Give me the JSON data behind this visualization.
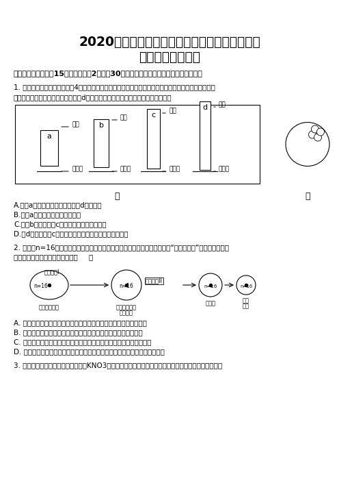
{
  "title_line1": "2020年北京市西城区实验学校高三生物下学期期",
  "title_line2": "末试卷及答案解析",
  "section1": "一、选择题：本题內15小题，每小還2分，內30分。每小题只有一个选项符合题目要求。",
  "q1_text1": "1. 用显微镜的一个目镜分别与4个不同物镜组合来观察某细胞装片。当成像清晰时，每一物镜与载玻片的",
  "q1_text2": "距离如图甲所示。图乙是选用图甲中d物镜时观察到的视野，下列说法错误的是（）",
  "q1_A": "A.选用a物镜时视野的亮度比选用d物镜时暗",
  "q1_B": "B.选用a物镜时观察到的细胞最大",
  "q1_C": "C.选用b物镜比选用c物镜观察到的细胞数目少",
  "q1_D": "D.由d物镜转换为c物镜观察时，应先将装片向左下方移动",
  "q2_text1": "2. 雄蜂（n=16）在产生精子的过程中，其精母细胞进行的是一种特殊形式的“假减数分裂”，具体过程如下",
  "q2_text2": "图所示，下列相关叙述错误的是（     ）",
  "q2_A": "A. 雄蜂减数第一次分裂过程中，细胞核均等分裂，细胞质不均等分裂",
  "q2_B": "B. 雄蜂的减数第二次分裂相当于一次细胞质不均等分裂的有丝分裂",
  "q2_C": "C. 雄蜂的次级精母细胞分裂后期与母细胞丝分裂后期的染色体数目相等",
  "q2_D": "D. 雄蜂减数分裂过程中可能发生基因突变和染色体变异，但不会发生基因重组",
  "q3_text1": "3. 将洋葱鲞片叶表皮浸入一定浓度的KNO3溶液中，表皮细胞发生了质壁分离，一段时间后，表皮细胞的",
  "bg_color": "#ffffff",
  "text_color": "#000000",
  "title_fontsize": 13.5,
  "body_fontsize": 8.0,
  "section_fontsize": 8.5
}
